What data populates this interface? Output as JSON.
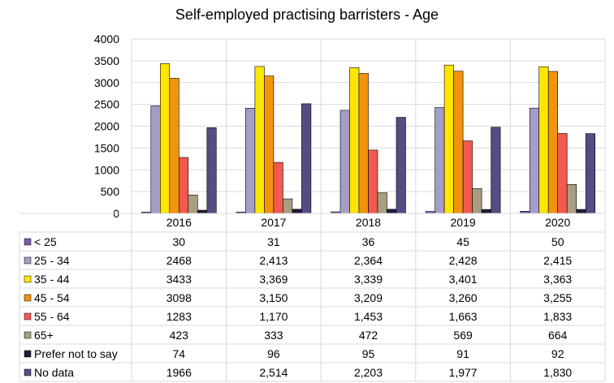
{
  "chart_data": {
    "type": "bar",
    "title": "Self-employed practising barristers - Age",
    "categories": [
      "2016",
      "2017",
      "2018",
      "2019",
      "2020"
    ],
    "ylim": [
      0,
      4000
    ],
    "yticks": [
      "4000",
      "3500",
      "3000",
      "2500",
      "2000",
      "1500",
      "1000",
      "500",
      "0"
    ],
    "ytick_values": [
      4000,
      3500,
      3000,
      2500,
      2000,
      1500,
      1000,
      500,
      0
    ],
    "grid": true,
    "legend": "data-table",
    "series": [
      {
        "name": "< 25",
        "color": "#7B5DA6",
        "values": [
          30,
          31,
          36,
          45,
          50
        ],
        "labels": [
          "30",
          "31",
          "36",
          "45",
          "50"
        ]
      },
      {
        "name": "25 - 34",
        "color": "#A69CC8",
        "values": [
          2468,
          2413,
          2364,
          2428,
          2415
        ],
        "labels": [
          "2468",
          "2,413",
          "2,364",
          "2,428",
          "2,415"
        ]
      },
      {
        "name": "35 - 44",
        "color": "#FFE600",
        "values": [
          3433,
          3369,
          3339,
          3401,
          3363
        ],
        "labels": [
          "3433",
          "3,369",
          "3,339",
          "3,401",
          "3,363"
        ]
      },
      {
        "name": "45 - 54",
        "color": "#F2930E",
        "values": [
          3098,
          3150,
          3209,
          3260,
          3255
        ],
        "labels": [
          "3098",
          "3,150",
          "3,209",
          "3,260",
          "3,255"
        ]
      },
      {
        "name": "55 - 64",
        "color": "#F25A4F",
        "values": [
          1283,
          1170,
          1453,
          1663,
          1833
        ],
        "labels": [
          "1283",
          "1,170",
          "1,453",
          "1,663",
          "1,833"
        ]
      },
      {
        "name": "65+",
        "color": "#A89F82",
        "values": [
          423,
          333,
          472,
          569,
          664
        ],
        "labels": [
          "423",
          "333",
          "472",
          "569",
          "664"
        ]
      },
      {
        "name": "Prefer not to say",
        "color": "#221C3C",
        "values": [
          74,
          96,
          95,
          91,
          92
        ],
        "labels": [
          "74",
          "96",
          "95",
          "91",
          "92"
        ]
      },
      {
        "name": "No data",
        "color": "#534D84",
        "values": [
          1966,
          2514,
          2203,
          1977,
          1830
        ],
        "labels": [
          "1966",
          "2,514",
          "2,203",
          "1,977",
          "1,830"
        ]
      }
    ]
  }
}
